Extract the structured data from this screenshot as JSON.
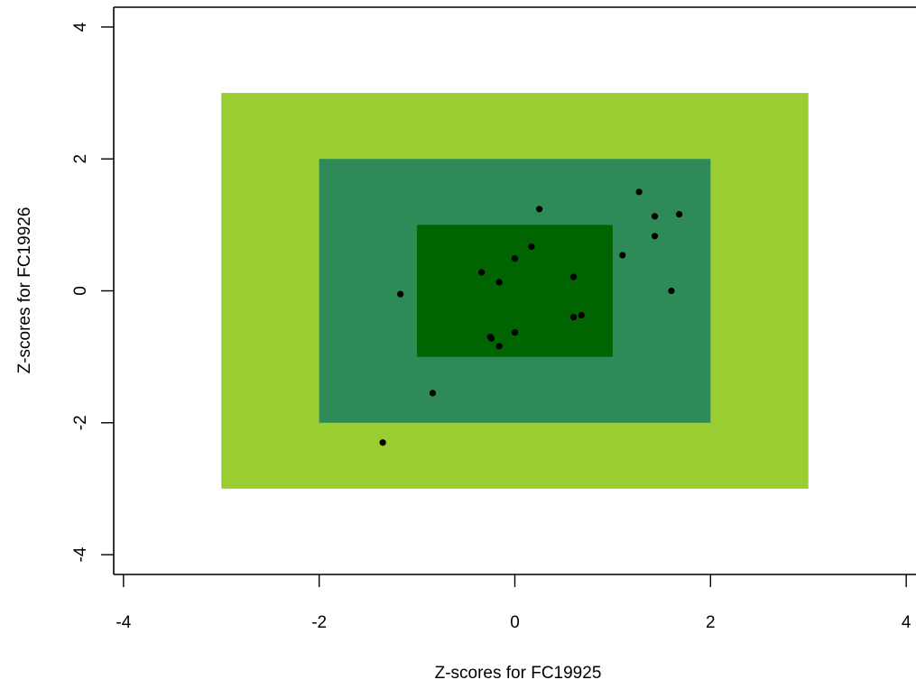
{
  "chart_data": {
    "type": "scatter",
    "title": "",
    "xlabel": "Z-scores   for FC19925",
    "ylabel": "Z-scores   for FC19926",
    "xlim": [
      -4.1,
      4.1
    ],
    "ylim": [
      -4.3,
      4.3
    ],
    "x_ticks": [
      -4,
      -2,
      0,
      2,
      4
    ],
    "y_ticks": [
      -4,
      -2,
      0,
      2,
      4
    ],
    "x_tick_labels": [
      "-4",
      "-2",
      "0",
      "2",
      "4"
    ],
    "y_tick_labels": [
      "-4",
      "-2",
      "0",
      "2",
      "4"
    ],
    "grid": false,
    "bands": [
      {
        "xmin": -3,
        "xmax": 3,
        "ymin": -3,
        "ymax": 3,
        "color": "#9ACD32"
      },
      {
        "xmin": -2,
        "xmax": 2,
        "ymin": -2,
        "ymax": 2,
        "color": "#2E8B57"
      },
      {
        "xmin": -1,
        "xmax": 1,
        "ymin": -1,
        "ymax": 1,
        "color": "#006400"
      }
    ],
    "point_color": "#000000",
    "points": [
      {
        "x": 0.25,
        "y": 1.24
      },
      {
        "x": 1.27,
        "y": 1.5
      },
      {
        "x": 1.43,
        "y": 1.13
      },
      {
        "x": 1.68,
        "y": 1.16
      },
      {
        "x": 1.43,
        "y": 0.83
      },
      {
        "x": 0.17,
        "y": 0.67
      },
      {
        "x": 1.1,
        "y": 0.54
      },
      {
        "x": 0.0,
        "y": 0.49
      },
      {
        "x": -0.34,
        "y": 0.28
      },
      {
        "x": 0.6,
        "y": 0.21
      },
      {
        "x": -0.16,
        "y": 0.13
      },
      {
        "x": -1.17,
        "y": -0.05
      },
      {
        "x": 1.6,
        "y": 0.0
      },
      {
        "x": 0.68,
        "y": -0.37
      },
      {
        "x": 0.6,
        "y": -0.4
      },
      {
        "x": 0.0,
        "y": -0.63
      },
      {
        "x": -0.25,
        "y": -0.7
      },
      {
        "x": -0.24,
        "y": -0.72
      },
      {
        "x": -0.16,
        "y": -0.84
      },
      {
        "x": -0.84,
        "y": -1.55
      },
      {
        "x": -1.35,
        "y": -2.3
      }
    ]
  }
}
